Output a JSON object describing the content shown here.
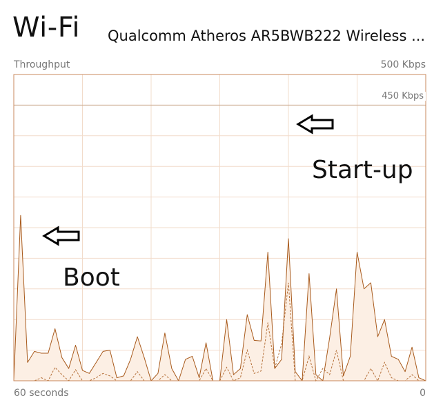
{
  "header": {
    "title": "Wi-Fi",
    "adapter": "Qualcomm Atheros AR5BWB222 Wireless ..."
  },
  "chart_data": {
    "type": "area",
    "ylabel": "Throughput",
    "y_max_label": "500 Kbps",
    "reference_label": "450 Kbps",
    "reference_value": 450,
    "x_left_label": "60 seconds",
    "x_right_label": "0",
    "ylim": [
      0,
      500
    ],
    "xlim": [
      60,
      0
    ],
    "grid": true,
    "x": [
      60,
      59,
      58,
      57,
      56,
      55,
      54,
      53,
      52,
      51,
      50,
      49,
      48,
      47,
      46,
      45,
      44,
      43,
      42,
      41,
      40,
      39,
      38,
      37,
      36,
      35,
      34,
      33,
      32,
      31,
      30,
      29,
      28,
      27,
      26,
      25,
      24,
      23,
      22,
      21,
      20,
      19,
      18,
      17,
      16,
      15,
      14,
      13,
      12,
      11,
      10,
      9,
      8,
      7,
      6,
      5,
      4,
      3,
      2,
      1,
      0
    ],
    "series": [
      {
        "values": [
          0,
          270,
          30,
          48,
          45,
          45,
          85,
          38,
          20,
          58,
          17,
          12,
          30,
          48,
          50,
          5,
          8,
          35,
          72,
          38,
          0,
          12,
          78,
          20,
          0,
          35,
          40,
          5,
          62,
          0,
          0,
          100,
          10,
          20,
          108,
          66,
          65,
          210,
          20,
          35,
          232,
          15,
          0,
          175,
          10,
          0,
          70,
          150,
          8,
          40,
          210,
          150,
          160,
          72,
          100,
          40,
          35,
          15,
          55,
          5,
          0
        ]
      },
      {
        "values": [
          0,
          0,
          0,
          0,
          5,
          0,
          22,
          10,
          0,
          18,
          0,
          0,
          5,
          12,
          8,
          0,
          0,
          0,
          15,
          0,
          0,
          0,
          10,
          0,
          0,
          0,
          0,
          0,
          20,
          0,
          0,
          22,
          0,
          5,
          50,
          12,
          16,
          95,
          20,
          60,
          160,
          0,
          0,
          40,
          0,
          20,
          10,
          50,
          0,
          0,
          0,
          0,
          20,
          0,
          30,
          5,
          0,
          0,
          10,
          0,
          0
        ]
      }
    ],
    "annotations": [
      {
        "text": "Boot",
        "x": 57,
        "y": 240
      },
      {
        "text": "Start-up",
        "x": 32,
        "y": 375
      }
    ]
  },
  "colors": {
    "line": "#a85a1c",
    "fill": "#fcefe4",
    "grid": "#f2dccb",
    "border": "#c98a5c",
    "reference": "#c8a88e"
  }
}
